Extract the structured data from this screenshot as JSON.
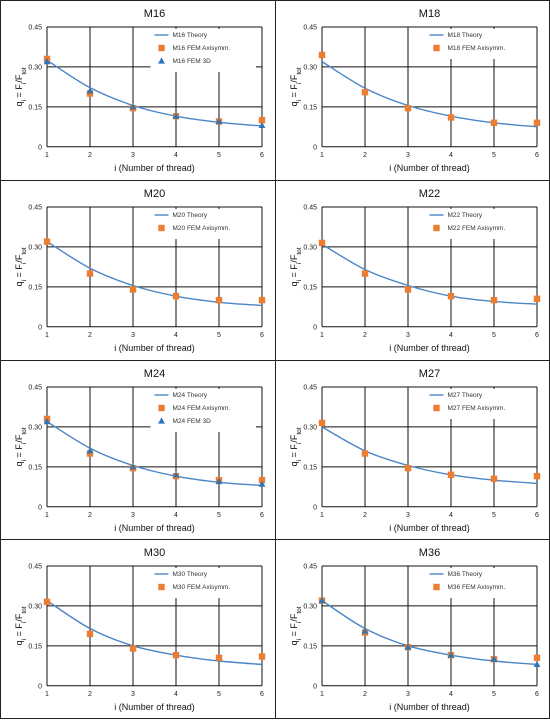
{
  "figure": {
    "xlabel": "i (Number of thread)",
    "ylabel_base": "q",
    "ylabel_sub": "i",
    "ylabel_mid": " = F",
    "ylabel_sub2": "i",
    "ylabel_div": "/F",
    "ylabel_sub3": "tot",
    "colors": {
      "theory": "#4a86c8",
      "axisymm": "#ed7d31",
      "fem3d": "#2e75b6",
      "grid": "#111111"
    }
  },
  "chart_data": [
    {
      "type": "scatter",
      "title": "M16",
      "xlabel": "i (Number of thread)",
      "ylabel": "qi = Fi/Ftot",
      "xlim": [
        1,
        6
      ],
      "ylim": [
        0,
        0.45
      ],
      "xticks": [
        "1",
        "2",
        "3",
        "4",
        "5",
        "6"
      ],
      "yticks": [
        "0",
        "0.15",
        "0.30",
        "0.45"
      ],
      "x": [
        1,
        2,
        3,
        4,
        5,
        6
      ],
      "series": [
        {
          "name": "M16 Theory",
          "kind": "line",
          "values": [
            0.325,
            0.222,
            0.155,
            0.115,
            0.092,
            0.078
          ]
        },
        {
          "name": "M16 FEM Axisymm.",
          "kind": "square",
          "values": [
            0.33,
            0.2,
            0.145,
            0.115,
            0.095,
            0.1
          ]
        },
        {
          "name": "M16 FEM 3D",
          "kind": "triangle",
          "values": [
            0.32,
            0.21,
            0.15,
            0.115,
            0.095,
            0.08
          ]
        }
      ]
    },
    {
      "type": "scatter",
      "title": "M18",
      "xlabel": "i (Number of thread)",
      "ylabel": "qi = Fi/Ftot",
      "xlim": [
        1,
        6
      ],
      "ylim": [
        0,
        0.45
      ],
      "xticks": [
        "1",
        "2",
        "3",
        "4",
        "5",
        "6"
      ],
      "yticks": [
        "0",
        "0.15",
        "0.30",
        "0.45"
      ],
      "x": [
        1,
        2,
        3,
        4,
        5,
        6
      ],
      "series": [
        {
          "name": "M18 Theory",
          "kind": "line",
          "values": [
            0.32,
            0.22,
            0.155,
            0.115,
            0.09,
            0.075
          ]
        },
        {
          "name": "M18 FEM Axisymm.",
          "kind": "square",
          "values": [
            0.345,
            0.205,
            0.145,
            0.11,
            0.09,
            0.09
          ]
        }
      ]
    },
    {
      "type": "scatter",
      "title": "M20",
      "xlabel": "i (Number of thread)",
      "ylabel": "qi = Fi/Ftot",
      "xlim": [
        1,
        6
      ],
      "ylim": [
        0,
        0.45
      ],
      "xticks": [
        "1",
        "2",
        "3",
        "4",
        "5",
        "6"
      ],
      "yticks": [
        "0",
        "0.15",
        "0.30",
        "0.45"
      ],
      "x": [
        1,
        2,
        3,
        4,
        5,
        6
      ],
      "series": [
        {
          "name": "M20 Theory",
          "kind": "line",
          "values": [
            0.32,
            0.22,
            0.155,
            0.115,
            0.092,
            0.08
          ]
        },
        {
          "name": "M20 FEM Axisymm.",
          "kind": "square",
          "values": [
            0.32,
            0.2,
            0.14,
            0.115,
            0.1,
            0.1
          ]
        }
      ]
    },
    {
      "type": "scatter",
      "title": "M22",
      "xlabel": "i (Number of thread)",
      "ylabel": "qi = Fi/Ftot",
      "xlim": [
        1,
        6
      ],
      "ylim": [
        0,
        0.45
      ],
      "xticks": [
        "1",
        "2",
        "3",
        "4",
        "5",
        "6"
      ],
      "yticks": [
        "0",
        "0.15",
        "0.30",
        "0.45"
      ],
      "x": [
        1,
        2,
        3,
        4,
        5,
        6
      ],
      "series": [
        {
          "name": "M22 Theory",
          "kind": "line",
          "values": [
            0.31,
            0.215,
            0.155,
            0.115,
            0.095,
            0.085
          ]
        },
        {
          "name": "M22 FEM Axisymm.",
          "kind": "square",
          "values": [
            0.315,
            0.2,
            0.14,
            0.115,
            0.1,
            0.105
          ]
        }
      ]
    },
    {
      "type": "scatter",
      "title": "M24",
      "xlabel": "i (Number of thread)",
      "ylabel": "qi = Fi/Ftot",
      "xlim": [
        1,
        6
      ],
      "ylim": [
        0,
        0.45
      ],
      "xticks": [
        "1",
        "2",
        "3",
        "4",
        "5",
        "6"
      ],
      "yticks": [
        "0",
        "0.15",
        "0.30",
        "0.45"
      ],
      "x": [
        1,
        2,
        3,
        4,
        5,
        6
      ],
      "series": [
        {
          "name": "M24 Theory",
          "kind": "line",
          "values": [
            0.32,
            0.22,
            0.155,
            0.115,
            0.092,
            0.08
          ]
        },
        {
          "name": "M24 FEM Axisymm.",
          "kind": "square",
          "values": [
            0.33,
            0.2,
            0.145,
            0.115,
            0.1,
            0.1
          ]
        },
        {
          "name": "M24 FEM 3D",
          "kind": "triangle",
          "values": [
            0.32,
            0.21,
            0.15,
            0.12,
            0.095,
            0.085
          ]
        }
      ]
    },
    {
      "type": "scatter",
      "title": "M27",
      "xlabel": "i (Number of thread)",
      "ylabel": "qi = Fi/Ftot",
      "xlim": [
        1,
        6
      ],
      "ylim": [
        0,
        0.45
      ],
      "xticks": [
        "1",
        "2",
        "3",
        "4",
        "5",
        "6"
      ],
      "yticks": [
        "0",
        "0.15",
        "0.30",
        "0.45"
      ],
      "x": [
        1,
        2,
        3,
        4,
        5,
        6
      ],
      "series": [
        {
          "name": "M27 Theory",
          "kind": "line",
          "values": [
            0.3,
            0.21,
            0.155,
            0.12,
            0.1,
            0.088
          ]
        },
        {
          "name": "M27 FEM Axisymm.",
          "kind": "square",
          "values": [
            0.315,
            0.2,
            0.145,
            0.12,
            0.105,
            0.115
          ]
        }
      ]
    },
    {
      "type": "scatter",
      "title": "M30",
      "xlabel": "i (Number of thread)",
      "ylabel": "qi = Fi/Ftot",
      "xlim": [
        1,
        6
      ],
      "ylim": [
        0,
        0.45
      ],
      "xticks": [
        "1",
        "2",
        "3",
        "4",
        "5",
        "6"
      ],
      "yticks": [
        "0",
        "0.15",
        "0.30",
        "0.45"
      ],
      "x": [
        1,
        2,
        3,
        4,
        5,
        6
      ],
      "series": [
        {
          "name": "M30 Theory",
          "kind": "line",
          "values": [
            0.32,
            0.215,
            0.15,
            0.115,
            0.093,
            0.08
          ]
        },
        {
          "name": "M30 FEM Axisymm.",
          "kind": "square",
          "values": [
            0.315,
            0.195,
            0.14,
            0.115,
            0.105,
            0.11
          ]
        }
      ]
    },
    {
      "type": "scatter",
      "title": "M36",
      "xlabel": "i (Number of thread)",
      "ylabel": "qi = Fi/Ftot",
      "xlim": [
        1,
        6
      ],
      "ylim": [
        0,
        0.45
      ],
      "xticks": [
        "1",
        "2",
        "3",
        "4",
        "5",
        "6"
      ],
      "yticks": [
        "0",
        "0.15",
        "0.30",
        "0.45"
      ],
      "x": [
        1,
        2,
        3,
        4,
        5,
        6
      ],
      "series": [
        {
          "name": "M36 Theory",
          "kind": "line",
          "values": [
            0.32,
            0.215,
            0.15,
            0.115,
            0.093,
            0.08
          ]
        },
        {
          "name": "M36 FEM Axisymm.",
          "kind": "square",
          "values": [
            0.32,
            0.2,
            0.145,
            0.115,
            0.1,
            0.105
          ]
        },
        {
          "name": "",
          "kind": "triangle",
          "values": [
            0.32,
            0.205,
            0.145,
            0.115,
            0.1,
            0.08
          ]
        }
      ]
    }
  ]
}
